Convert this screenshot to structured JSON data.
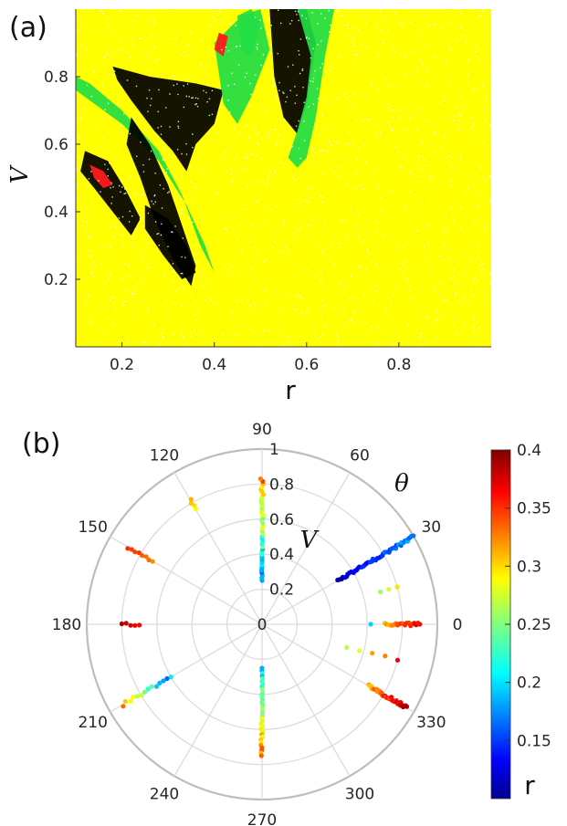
{
  "chart_data": [
    {
      "type": "scatter",
      "panel_label": "(a)",
      "xlabel": "r",
      "ylabel": "V",
      "xlim": [
        0.1,
        1.0
      ],
      "ylim": [
        0.0,
        1.0
      ],
      "xticks": [
        "0.2",
        "0.4",
        "0.6",
        "0.8"
      ],
      "yticks": [
        "0.2",
        "0.4",
        "0.6",
        "0.8"
      ],
      "grid": false,
      "colors": {
        "background_points": "#ffff00",
        "black_points": "#000000",
        "green_points": "#22dd44",
        "red_points": "#ff1a1a",
        "white_speckle": "#ffffff"
      },
      "regions": [
        {
          "color": "green",
          "polygon_data": [
            [
              0.1,
              0.8
            ],
            [
              0.13,
              0.78
            ],
            [
              0.2,
              0.7
            ],
            [
              0.28,
              0.58
            ],
            [
              0.33,
              0.45
            ],
            [
              0.37,
              0.3
            ],
            [
              0.4,
              0.22
            ],
            [
              0.38,
              0.3
            ],
            [
              0.34,
              0.42
            ],
            [
              0.28,
              0.55
            ],
            [
              0.2,
              0.66
            ],
            [
              0.12,
              0.74
            ],
            [
              0.1,
              0.76
            ]
          ]
        },
        {
          "color": "black",
          "polygon_data": [
            [
              0.18,
              0.83
            ],
            [
              0.26,
              0.8
            ],
            [
              0.36,
              0.78
            ],
            [
              0.42,
              0.76
            ],
            [
              0.4,
              0.66
            ],
            [
              0.36,
              0.6
            ],
            [
              0.34,
              0.52
            ],
            [
              0.31,
              0.58
            ],
            [
              0.27,
              0.64
            ],
            [
              0.22,
              0.73
            ],
            [
              0.19,
              0.79
            ]
          ]
        },
        {
          "color": "black",
          "polygon_data": [
            [
              0.22,
              0.68
            ],
            [
              0.26,
              0.6
            ],
            [
              0.3,
              0.48
            ],
            [
              0.33,
              0.36
            ],
            [
              0.36,
              0.24
            ],
            [
              0.35,
              0.18
            ],
            [
              0.31,
              0.26
            ],
            [
              0.27,
              0.38
            ],
            [
              0.24,
              0.5
            ],
            [
              0.21,
              0.6
            ]
          ]
        },
        {
          "color": "black",
          "polygon_data": [
            [
              0.12,
              0.58
            ],
            [
              0.17,
              0.55
            ],
            [
              0.21,
              0.46
            ],
            [
              0.24,
              0.38
            ],
            [
              0.22,
              0.33
            ],
            [
              0.18,
              0.4
            ],
            [
              0.14,
              0.47
            ],
            [
              0.11,
              0.52
            ]
          ]
        },
        {
          "color": "black",
          "polygon_data": [
            [
              0.25,
              0.42
            ],
            [
              0.3,
              0.38
            ],
            [
              0.34,
              0.3
            ],
            [
              0.36,
              0.22
            ],
            [
              0.33,
              0.2
            ],
            [
              0.29,
              0.27
            ],
            [
              0.25,
              0.35
            ]
          ]
        },
        {
          "color": "green",
          "polygon_data": [
            [
              0.4,
              0.9
            ],
            [
              0.46,
              0.98
            ],
            [
              0.5,
              1.0
            ],
            [
              0.52,
              0.88
            ],
            [
              0.48,
              0.74
            ],
            [
              0.45,
              0.66
            ],
            [
              0.42,
              0.72
            ]
          ]
        },
        {
          "color": "black",
          "polygon_data": [
            [
              0.52,
              1.0
            ],
            [
              0.56,
              1.0
            ],
            [
              0.6,
              1.0
            ],
            [
              0.62,
              0.9
            ],
            [
              0.6,
              0.72
            ],
            [
              0.58,
              0.63
            ],
            [
              0.55,
              0.68
            ],
            [
              0.53,
              0.8
            ]
          ]
        },
        {
          "color": "green",
          "polygon_data": [
            [
              0.58,
              1.0
            ],
            [
              0.64,
              1.0
            ],
            [
              0.66,
              1.0
            ],
            [
              0.64,
              0.86
            ],
            [
              0.62,
              0.68
            ],
            [
              0.6,
              0.56
            ],
            [
              0.58,
              0.53
            ],
            [
              0.56,
              0.56
            ],
            [
              0.58,
              0.64
            ],
            [
              0.6,
              0.74
            ],
            [
              0.61,
              0.86
            ]
          ]
        },
        {
          "color": "green",
          "polygon_data": [
            [
              0.45,
              0.98
            ],
            [
              0.48,
              1.0
            ],
            [
              0.5,
              0.96
            ],
            [
              0.48,
              0.86
            ],
            [
              0.46,
              0.88
            ]
          ]
        },
        {
          "color": "red",
          "polygon_data": [
            [
              0.13,
              0.54
            ],
            [
              0.16,
              0.52
            ],
            [
              0.18,
              0.48
            ],
            [
              0.16,
              0.47
            ],
            [
              0.14,
              0.5
            ]
          ]
        },
        {
          "color": "red",
          "polygon_data": [
            [
              0.41,
              0.93
            ],
            [
              0.43,
              0.92
            ],
            [
              0.42,
              0.86
            ],
            [
              0.4,
              0.88
            ]
          ]
        }
      ]
    },
    {
      "type": "scatter",
      "subtype": "polar",
      "panel_label": "(b)",
      "theta_label": "θ",
      "radial_label": "V",
      "theta_ticks": [
        "0",
        "30",
        "60",
        "90",
        "120",
        "150",
        "180",
        "210",
        "240",
        "270",
        "300",
        "330"
      ],
      "r_ticks": [
        "0",
        "0.2",
        "0.4",
        "0.6",
        "0.8",
        "1"
      ],
      "rlim": [
        0,
        1
      ],
      "colorbar": {
        "label": "r",
        "min": 0.1,
        "max": 0.4,
        "ticks": [
          "0.15",
          "0.2",
          "0.25",
          "0.3",
          "0.35",
          "0.4"
        ]
      },
      "clusters": [
        {
          "theta": 90,
          "V_range": [
            0.25,
            0.83
          ],
          "r_range": [
            0.15,
            0.35
          ],
          "count": 40
        },
        {
          "theta": 270,
          "V_range": [
            0.25,
            0.75
          ],
          "r_range": [
            0.18,
            0.35
          ],
          "count": 34
        },
        {
          "theta": 30,
          "V_range": [
            0.5,
            1.0
          ],
          "r_range": [
            0.1,
            0.2
          ],
          "count": 46
        },
        {
          "theta": 330,
          "V_range": [
            0.7,
            0.95
          ],
          "r_range": [
            0.3,
            0.4
          ],
          "count": 30
        },
        {
          "theta": 0,
          "V_range": [
            0.7,
            0.9
          ],
          "r_range": [
            0.3,
            0.38
          ],
          "count": 20
        },
        {
          "theta": 0,
          "V_range": [
            0.62,
            0.62
          ],
          "r_range": [
            0.2,
            0.2
          ],
          "count": 1
        },
        {
          "theta": 180,
          "V_range": [
            0.7,
            0.8
          ],
          "r_range": [
            0.36,
            0.39
          ],
          "count": 5
        },
        {
          "theta": 150,
          "V_range": [
            0.72,
            0.88
          ],
          "r_range": [
            0.32,
            0.36
          ],
          "count": 8
        },
        {
          "theta": 120,
          "V_range": [
            0.76,
            0.82
          ],
          "r_range": [
            0.28,
            0.32
          ],
          "count": 4
        },
        {
          "theta": 210,
          "V_range": [
            0.6,
            0.92
          ],
          "r_range": [
            0.15,
            0.35
          ],
          "count": 14
        },
        {
          "theta": 345,
          "V_range": [
            0.5,
            0.8
          ],
          "r_range": [
            0.25,
            0.38
          ],
          "count": 5
        },
        {
          "theta": 15,
          "V_range": [
            0.7,
            0.8
          ],
          "r_range": [
            0.25,
            0.3
          ],
          "count": 3
        }
      ]
    }
  ]
}
